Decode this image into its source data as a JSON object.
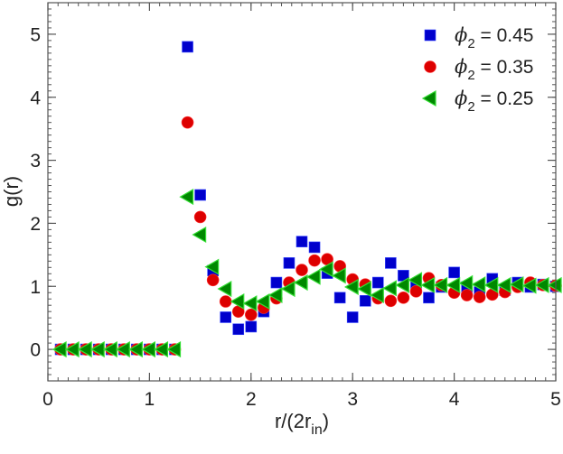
{
  "chart_data": {
    "type": "scatter",
    "title": "",
    "xlabel": "r/(2r",
    "xlabel_sub": "in",
    "xlabel_close": ")",
    "ylabel": "g(r)",
    "xlim": [
      0,
      5
    ],
    "ylim": [
      -0.5,
      5.5
    ],
    "x_ticks": [
      0,
      1,
      2,
      3,
      4,
      5
    ],
    "x_tick_labels": [
      "0",
      "1",
      "2",
      "3",
      "4",
      "5"
    ],
    "y_ticks": [
      0,
      1,
      2,
      3,
      4,
      5
    ],
    "y_tick_labels": [
      "0",
      "1",
      "2",
      "3",
      "4",
      "5"
    ],
    "minor_tick_step": 0.1,
    "grid": false,
    "legend_position": "top-right",
    "x": [
      0.125,
      0.25,
      0.375,
      0.5,
      0.625,
      0.75,
      0.875,
      1.0,
      1.125,
      1.25,
      1.375,
      1.5,
      1.625,
      1.75,
      1.875,
      2.0,
      2.125,
      2.25,
      2.375,
      2.5,
      2.625,
      2.75,
      2.875,
      3.0,
      3.125,
      3.25,
      3.375,
      3.5,
      3.625,
      3.75,
      3.875,
      4.0,
      4.125,
      4.25,
      4.375,
      4.5,
      4.625,
      4.75,
      4.875,
      5.0
    ],
    "series": [
      {
        "name": "phi2-0.45",
        "legend_symbol": "ϕ",
        "legend_sub": "2",
        "legend_value": " = 0.45",
        "marker": "square",
        "color": "#0000CC",
        "values": [
          0,
          0,
          0,
          0,
          0,
          0,
          0,
          0,
          0,
          0,
          4.8,
          2.45,
          1.25,
          0.51,
          0.32,
          0.36,
          0.6,
          1.06,
          1.37,
          1.71,
          1.62,
          1.21,
          0.82,
          0.51,
          0.77,
          1.06,
          1.37,
          1.17,
          1.03,
          0.82,
          0.99,
          1.22,
          0.99,
          0.91,
          1.12,
          0.94,
          1.06,
          0.99,
          1.03,
          1.0
        ]
      },
      {
        "name": "phi2-0.35",
        "legend_symbol": "ϕ",
        "legend_sub": "2",
        "legend_value": " = 0.35",
        "marker": "circle",
        "color": "#DD0000",
        "values": [
          0,
          0,
          0,
          0,
          0,
          0,
          0,
          0,
          0,
          0,
          3.6,
          2.1,
          1.1,
          0.76,
          0.6,
          0.55,
          0.66,
          0.81,
          1.06,
          1.26,
          1.41,
          1.43,
          1.32,
          1.11,
          1.03,
          0.81,
          0.77,
          0.82,
          0.92,
          1.13,
          1.02,
          0.9,
          0.86,
          0.83,
          0.87,
          0.91,
          0.99,
          1.06,
          1.02,
          1.01
        ]
      },
      {
        "name": "phi2-0.25",
        "legend_symbol": "ϕ",
        "legend_sub": "2",
        "legend_value": " = 0.25",
        "marker": "triangle-left",
        "color": "#008800",
        "edge_color": "#33DD33",
        "values": [
          0,
          0,
          0,
          0,
          0,
          0,
          0,
          0,
          0,
          0,
          2.42,
          1.82,
          1.31,
          0.96,
          0.76,
          0.73,
          0.76,
          0.86,
          0.96,
          1.06,
          1.15,
          1.27,
          1.17,
          0.99,
          0.96,
          0.86,
          0.97,
          1.02,
          1.1,
          1.02,
          1.02,
          1.02,
          1.05,
          1.03,
          1.02,
          1.02,
          1.03,
          1.01,
          1.02,
          1.02
        ]
      }
    ]
  }
}
